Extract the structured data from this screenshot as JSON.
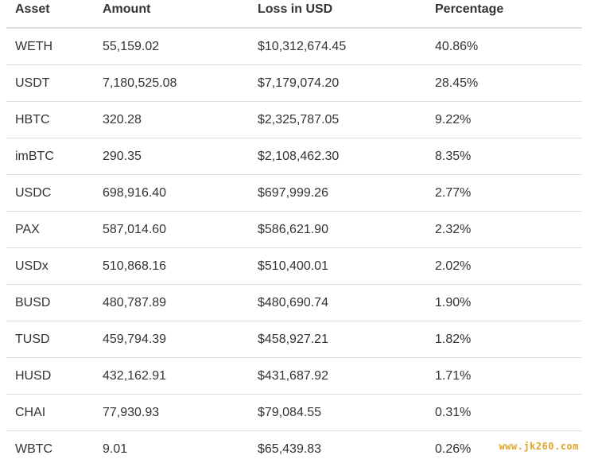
{
  "table": {
    "headers": [
      "Asset",
      "Amount",
      "Loss in USD",
      "Percentage"
    ],
    "rows": [
      [
        "WETH",
        "55,159.02",
        "$10,312,674.45",
        "40.86%"
      ],
      [
        "USDT",
        "7,180,525.08",
        "$7,179,074.20",
        "28.45%"
      ],
      [
        "HBTC",
        "320.28",
        "$2,325,787.05",
        "9.22%"
      ],
      [
        "imBTC",
        "290.35",
        "$2,108,462.30",
        "8.35%"
      ],
      [
        "USDC",
        "698,916.40",
        "$697,999.26",
        "2.77%"
      ],
      [
        "PAX",
        "587,014.60",
        "$586,621.90",
        "2.32%"
      ],
      [
        "USDx",
        "510,868.16",
        "$510,400.01",
        "2.02%"
      ],
      [
        "BUSD",
        "480,787.89",
        "$480,690.74",
        "1.90%"
      ],
      [
        "TUSD",
        "459,794.39",
        "$458,927.21",
        "1.82%"
      ],
      [
        "HUSD",
        "432,162.91",
        "$431,687.92",
        "1.71%"
      ],
      [
        "CHAI",
        "77,930.93",
        "$79,084.55",
        "0.31%"
      ],
      [
        "WBTC",
        "9.01",
        "$65,439.83",
        "0.26%"
      ]
    ]
  },
  "watermark": "www.jk260.com",
  "colors": {
    "text": "#333333",
    "border": "#dddddd",
    "watermark": "#e0a628"
  }
}
